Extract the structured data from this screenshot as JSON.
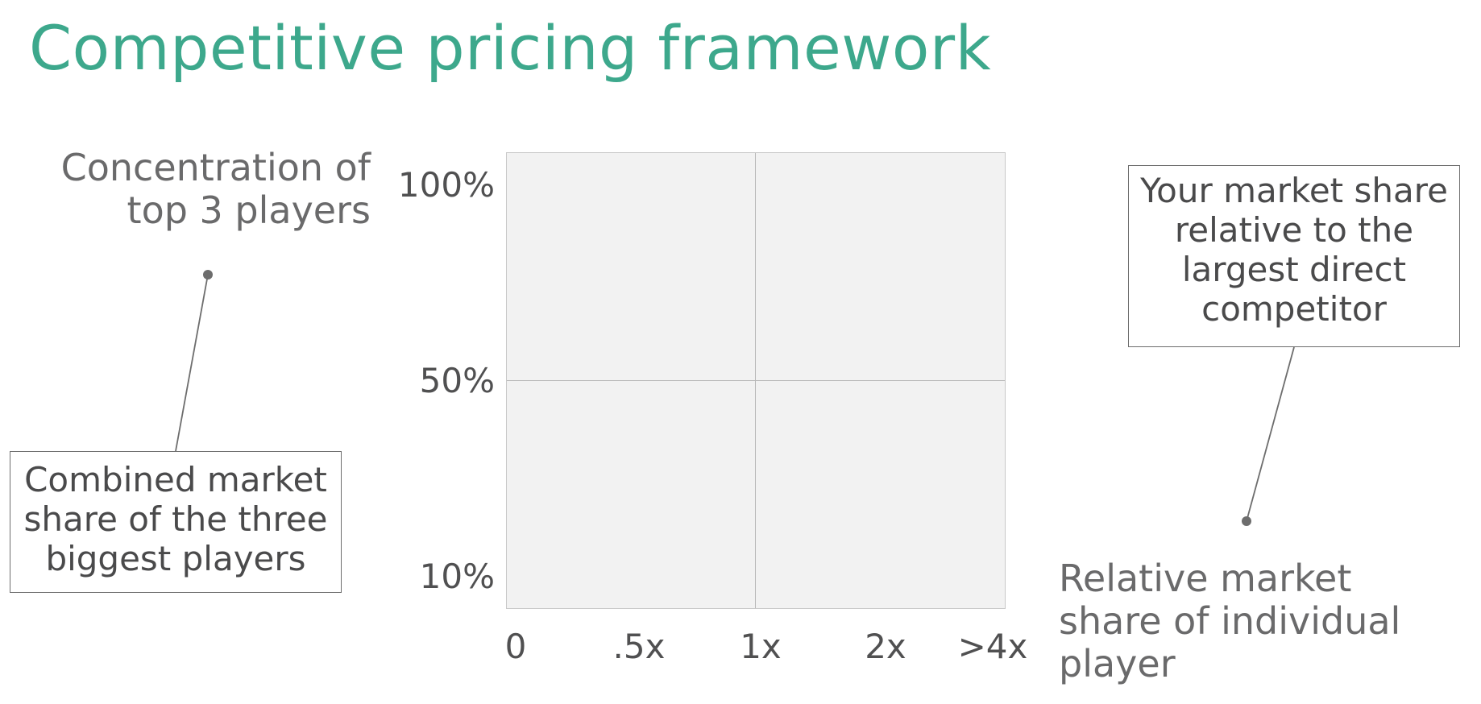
{
  "title": "Competitive pricing framework",
  "y_axis": {
    "title_line1": "Concentration of",
    "title_line2": "top 3 players",
    "ticks": [
      "100%",
      "50%",
      "10%"
    ]
  },
  "x_axis": {
    "title_line1": "Relative market",
    "title_line2": "share of individual",
    "title_line3": "player",
    "ticks": [
      "0",
      ".5x",
      "1x",
      "2x",
      ">4x"
    ]
  },
  "callouts": {
    "left": {
      "line1": "Combined market",
      "line2": "share of the three",
      "line3": "biggest players"
    },
    "right": {
      "line1": "Your market share",
      "line2": "relative to the",
      "line3": "largest direct",
      "line4": "competitor"
    }
  },
  "colors": {
    "title": "#3da88c",
    "plot_background": "#f2f2f2",
    "text": "#5f5f60"
  }
}
